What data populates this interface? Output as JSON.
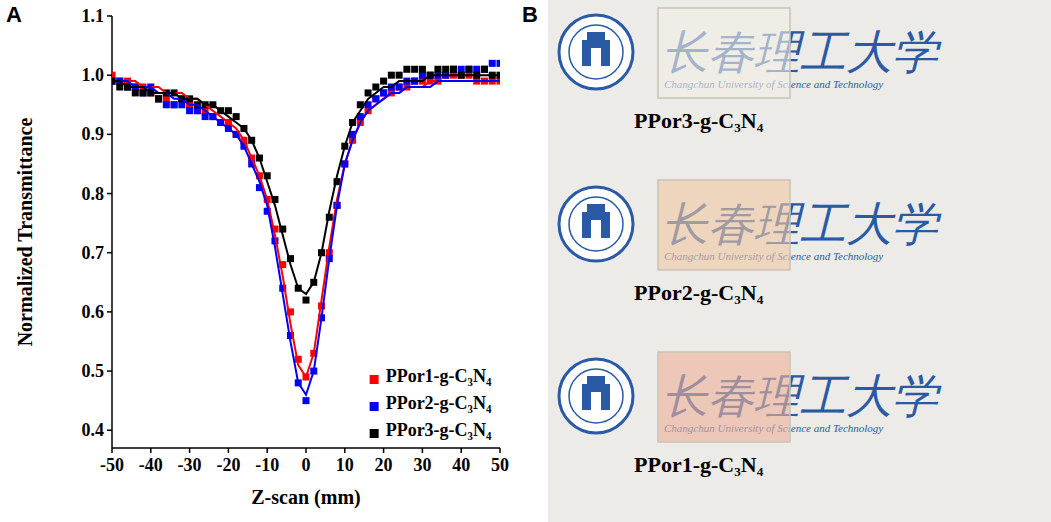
{
  "panel_labels": [
    "A",
    "B"
  ],
  "chart_data": {
    "type": "scatter",
    "x_label": "Z-scan (mm)",
    "y_label": "Normalized Transmittance",
    "x": [
      -50,
      -48,
      -46,
      -44,
      -42,
      -40,
      -38,
      -36,
      -34,
      -32,
      -30,
      -28,
      -26,
      -24,
      -22,
      -20,
      -18,
      -16,
      -14,
      -12,
      -10,
      -8,
      -6,
      -4,
      -2,
      0,
      2,
      4,
      6,
      8,
      10,
      12,
      14,
      16,
      18,
      20,
      22,
      24,
      26,
      28,
      30,
      32,
      34,
      36,
      38,
      40,
      42,
      44,
      46,
      48,
      50
    ],
    "xlim": [
      -50,
      50
    ],
    "xticks": [
      -50,
      -40,
      -30,
      -20,
      -10,
      0,
      10,
      20,
      30,
      40,
      50
    ],
    "ylim": [
      0.37,
      1.1
    ],
    "yticks": [
      0.4,
      0.5,
      0.6,
      0.7,
      0.8,
      0.9,
      {
        "value": 1,
        "label": "1.0"
      },
      1.1
    ],
    "legend": "lower right",
    "series": [
      {
        "name": "PPor1-g-C₃N₄",
        "type": "scatter",
        "marker": "square",
        "color": "#ff0000",
        "values": [
          1.0,
          0.99,
          0.99,
          0.98,
          0.98,
          0.97,
          0.96,
          0.96,
          0.95,
          0.96,
          0.95,
          0.94,
          0.94,
          0.93,
          0.92,
          0.92,
          0.9,
          0.89,
          0.86,
          0.83,
          0.79,
          0.74,
          0.68,
          0.6,
          0.52,
          0.49,
          0.53,
          0.61,
          0.7,
          0.78,
          0.85,
          0.89,
          0.92,
          0.94,
          0.96,
          0.97,
          0.97,
          0.98,
          0.98,
          0.99,
          0.99,
          0.99,
          0.99,
          1.0,
          1.0,
          1.0,
          1.0,
          0.99,
          0.99,
          0.99,
          0.99
        ]
      },
      {
        "name": "PPor2-g-C₃N₄",
        "type": "scatter",
        "marker": "square",
        "color": "#0000ff",
        "values": [
          0.99,
          0.99,
          0.98,
          0.98,
          0.97,
          0.98,
          0.96,
          0.95,
          0.95,
          0.95,
          0.94,
          0.94,
          0.93,
          0.93,
          0.92,
          0.91,
          0.9,
          0.88,
          0.85,
          0.81,
          0.77,
          0.72,
          0.64,
          0.56,
          0.48,
          0.45,
          0.5,
          0.59,
          0.69,
          0.78,
          0.85,
          0.9,
          0.93,
          0.95,
          0.96,
          0.97,
          0.98,
          0.98,
          0.99,
          0.99,
          1.0,
          1.0,
          1.0,
          1.0,
          1.01,
          1.01,
          1.01,
          1.01,
          1.01,
          1.02,
          1.02
        ]
      },
      {
        "name": "PPor3-g-C₃N₄",
        "type": "scatter",
        "marker": "square",
        "color": "#000000",
        "values": [
          0.99,
          0.98,
          0.98,
          0.97,
          0.97,
          0.97,
          0.96,
          0.97,
          0.97,
          0.96,
          0.96,
          0.95,
          0.95,
          0.95,
          0.94,
          0.94,
          0.93,
          0.91,
          0.89,
          0.86,
          0.83,
          0.79,
          0.74,
          0.69,
          0.64,
          0.62,
          0.65,
          0.7,
          0.76,
          0.82,
          0.88,
          0.92,
          0.95,
          0.97,
          0.98,
          0.99,
          1.0,
          1.0,
          1.01,
          1.01,
          1.01,
          1.0,
          1.01,
          1.01,
          1.01,
          1.0,
          1.01,
          1.0,
          1.01,
          1.0,
          1.0
        ]
      },
      {
        "type": "line",
        "line_style": "solid",
        "color": "#ff0000",
        "values": [
          0.99,
          0.99,
          0.99,
          0.99,
          0.98,
          0.98,
          0.98,
          0.97,
          0.97,
          0.97,
          0.96,
          0.96,
          0.95,
          0.94,
          0.93,
          0.92,
          0.91,
          0.89,
          0.86,
          0.83,
          0.79,
          0.73,
          0.66,
          0.58,
          0.51,
          0.49,
          0.53,
          0.62,
          0.71,
          0.79,
          0.85,
          0.89,
          0.92,
          0.94,
          0.95,
          0.96,
          0.97,
          0.97,
          0.98,
          0.98,
          0.98,
          0.99,
          0.99,
          0.99,
          0.99,
          0.99,
          0.99,
          0.99,
          0.99,
          0.99,
          0.99
        ]
      },
      {
        "type": "line",
        "line_style": "solid",
        "color": "#0000ff",
        "values": [
          0.99,
          0.99,
          0.99,
          0.98,
          0.98,
          0.98,
          0.97,
          0.97,
          0.96,
          0.96,
          0.95,
          0.95,
          0.94,
          0.93,
          0.92,
          0.91,
          0.9,
          0.88,
          0.85,
          0.82,
          0.78,
          0.71,
          0.63,
          0.55,
          0.48,
          0.46,
          0.5,
          0.59,
          0.69,
          0.78,
          0.85,
          0.89,
          0.92,
          0.94,
          0.95,
          0.96,
          0.97,
          0.97,
          0.98,
          0.98,
          0.98,
          0.98,
          0.99,
          0.99,
          0.99,
          0.99,
          0.99,
          0.99,
          0.99,
          0.99,
          0.99
        ]
      },
      {
        "type": "line",
        "line_style": "solid",
        "color": "#000000",
        "values": [
          0.99,
          0.99,
          0.98,
          0.98,
          0.98,
          0.97,
          0.97,
          0.97,
          0.97,
          0.96,
          0.96,
          0.96,
          0.95,
          0.95,
          0.94,
          0.93,
          0.92,
          0.91,
          0.89,
          0.86,
          0.82,
          0.78,
          0.73,
          0.68,
          0.64,
          0.63,
          0.65,
          0.7,
          0.77,
          0.83,
          0.88,
          0.92,
          0.94,
          0.96,
          0.97,
          0.98,
          0.98,
          0.99,
          0.99,
          0.99,
          0.99,
          1.0,
          1.0,
          1.0,
          1.0,
          1.0,
          1.0,
          1.0,
          1.0,
          1.0,
          1.0
        ]
      }
    ]
  },
  "photo": {
    "school_name": "长春理工大学",
    "school_name_en": "Changchun University of Science and Technology",
    "samples": [
      {
        "label": "PPor3-g-C₃N₄",
        "color": "#f3efe4"
      },
      {
        "label": "PPor2-g-C₃N₄",
        "color": "#f0c6a2"
      },
      {
        "label": "PPor1-g-C₃N₄",
        "color": "#eeb09a"
      }
    ]
  }
}
